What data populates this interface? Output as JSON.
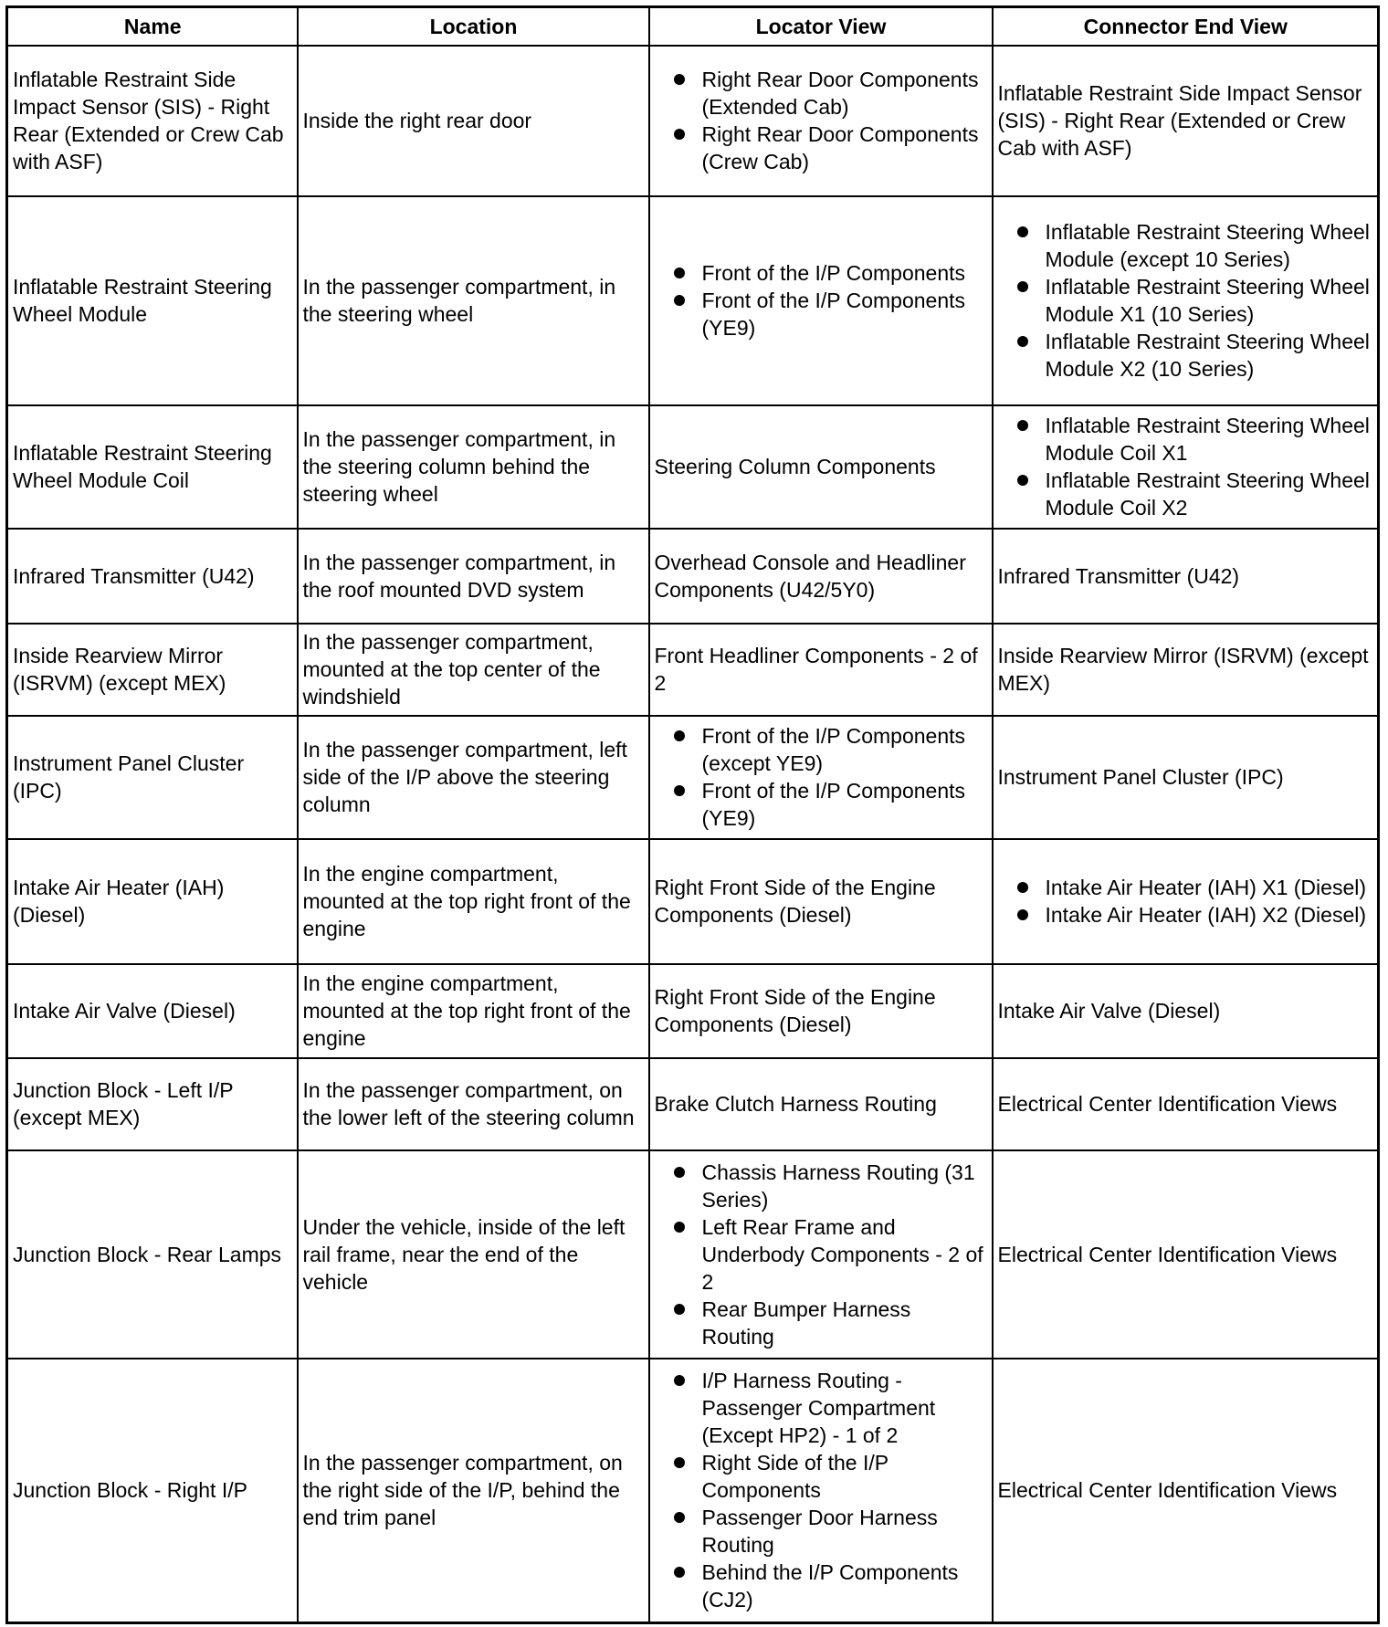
{
  "headers": [
    "Name",
    "Location",
    "Locator View",
    "Connector End View"
  ],
  "rows": [
    {
      "name": "Inflatable Restraint Side Impact Sensor (SIS) - Right Rear (Extended or Crew Cab with ASF)",
      "location": "Inside the right rear door",
      "locator": [
        "Right Rear Door Components (Extended Cab)",
        "Right Rear Door Components (Crew Cab)"
      ],
      "connector": "Inflatable Restraint Side Impact Sensor (SIS) - Right Rear (Extended or Crew Cab with ASF)"
    },
    {
      "name": "Inflatable Restraint Steering Wheel Module",
      "location": "In the passenger compartment, in the steering wheel",
      "locator": [
        "Front of the I/P Components",
        "Front of the I/P Components (YE9)"
      ],
      "connector": [
        "Inflatable Restraint Steering Wheel Module (except 10 Series)",
        "Inflatable Restraint Steering Wheel Module X1 (10 Series)",
        "Inflatable Restraint Steering Wheel Module X2 (10 Series)"
      ]
    },
    {
      "name": "Inflatable Restraint Steering Wheel Module Coil",
      "location": "In the passenger compartment, in the steering column behind the steering wheel",
      "locator": "Steering Column Components",
      "connector": [
        "Inflatable Restraint Steering Wheel Module Coil X1",
        "Inflatable Restraint Steering Wheel Module Coil X2"
      ]
    },
    {
      "name": "Infrared Transmitter (U42)",
      "location": "In the passenger compartment, in the roof mounted DVD system",
      "locator": "Overhead Console and Headliner Components (U42/5Y0)",
      "connector": "Infrared Transmitter (U42)"
    },
    {
      "name": "Inside Rearview Mirror (ISRVM) (except MEX)",
      "location": "In the passenger compartment, mounted at the top center of the windshield",
      "locator": "Front Headliner Components - 2 of 2",
      "connector": "Inside Rearview Mirror (ISRVM) (except MEX)"
    },
    {
      "name": "Instrument Panel Cluster (IPC)",
      "location": "In the passenger compartment, left side of the I/P above the steering column",
      "locator": [
        "Front of the I/P Components (except YE9)",
        "Front of the I/P Components (YE9)"
      ],
      "connector": "Instrument Panel Cluster (IPC)"
    },
    {
      "name": "Intake Air Heater (IAH) (Diesel)",
      "location": "In the engine compartment, mounted at the top right front of the engine",
      "locator": "Right Front Side of the Engine Components (Diesel)",
      "connector": [
        "Intake Air Heater (IAH) X1 (Diesel)",
        "Intake Air Heater (IAH) X2 (Diesel)"
      ]
    },
    {
      "name": "Intake Air Valve (Diesel)",
      "location": "In the engine compartment, mounted at the top right front of the engine",
      "locator": "Right Front Side of the Engine Components (Diesel)",
      "connector": "Intake Air Valve (Diesel)"
    },
    {
      "name": "Junction Block - Left I/P (except MEX)",
      "location": "In the passenger compartment, on the lower left of the steering column",
      "locator": "Brake Clutch Harness Routing",
      "connector": "Electrical Center Identification Views"
    },
    {
      "name": "Junction Block - Rear Lamps",
      "location": "Under the vehicle, inside of the left rail frame, near the end of the vehicle",
      "locator": [
        "Chassis Harness Routing (31 Series)",
        "Left Rear Frame and Underbody Components - 2 of 2",
        "Rear Bumper Harness Routing"
      ],
      "connector": "Electrical Center Identification Views"
    },
    {
      "name": "Junction Block - Right I/P",
      "location": "In the passenger compartment, on the right side of the I/P, behind the end trim panel",
      "locator": [
        "I/P Harness Routing - Passenger Compartment (Except HP2) - 1 of 2",
        "Right Side of the I/P Components",
        "Passenger Door Harness Routing",
        "Behind the I/P Components (CJ2)"
      ],
      "connector": "Electrical Center Identification Views"
    }
  ]
}
